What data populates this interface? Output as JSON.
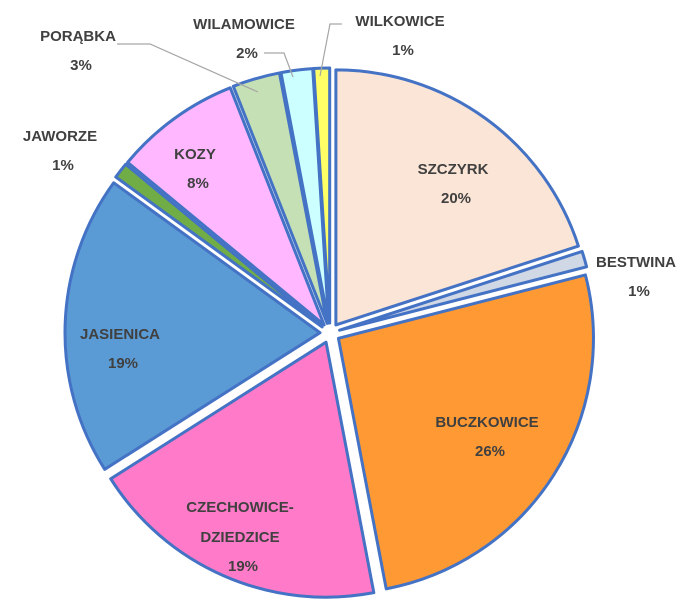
{
  "chart_data": {
    "type": "pie",
    "categories": [
      "SZCZYRK",
      "BESTWINA",
      "BUCZKOWICE",
      "CZECHOWICE-DZIEDZICE",
      "JASIENICA",
      "JAWORZE",
      "KOZY",
      "PORĄBKA",
      "WILAMOWICE",
      "WILKOWICE"
    ],
    "values": [
      20,
      1,
      26,
      19,
      19,
      1,
      8,
      3,
      2,
      1
    ],
    "value_labels": [
      "20%",
      "1%",
      "26%",
      "19%",
      "19%",
      "1%",
      "8%",
      "3%",
      "2%",
      "1%"
    ],
    "colors": [
      "#fbe5d6",
      "#d0d7e5",
      "#ff9933",
      "#ff7ac8",
      "#5b9bd5",
      "#70ad47",
      "#ffb7ff",
      "#c5e0b4",
      "#ccffff",
      "#ffff66"
    ],
    "edge_color": "#4472c4"
  }
}
